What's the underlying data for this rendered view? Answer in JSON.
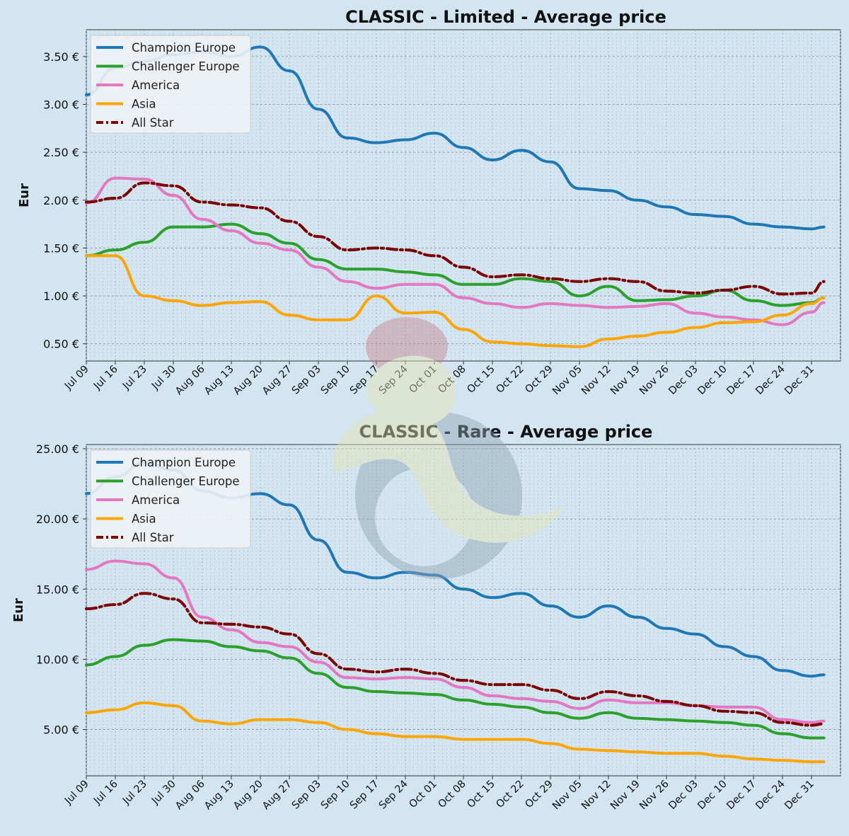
{
  "colors": {
    "background": "#d3e5f0",
    "champion_europe": "#1f77b4",
    "challenger_europe": "#2ca02c",
    "america": "#e377c2",
    "asia": "#ffa500",
    "all_star": "#7b0000"
  },
  "x_ticks": [
    "Jul 09",
    "Jul 16",
    "Jul 23",
    "Jul 30",
    "Aug 06",
    "Aug 13",
    "Aug 20",
    "Aug 27",
    "Sep 03",
    "Sep 10",
    "Sep 17",
    "Sep 24",
    "Oct 01",
    "Oct 08",
    "Oct 15",
    "Oct 22",
    "Oct 29",
    "Nov 05",
    "Nov 12",
    "Nov 19",
    "Nov 26",
    "Dec 03",
    "Dec 10",
    "Dec 17",
    "Dec 24",
    "Dec 31"
  ],
  "chart_data": [
    {
      "type": "line",
      "title": "CLASSIC   -   Limited   -   Average price",
      "xlabel": "",
      "ylabel": "Eur",
      "x_range": [
        "Jul 09",
        "Jan 07"
      ],
      "ylim": [
        0.32,
        3.78
      ],
      "y_ticks": [
        "0.50 €",
        "1.00 €",
        "1.50 €",
        "2.00 €",
        "2.50 €",
        "3.00 €",
        "3.50 €"
      ],
      "y_tick_values": [
        0.5,
        1.0,
        1.5,
        2.0,
        2.5,
        3.0,
        3.5
      ],
      "grid": true,
      "legend": "top-left",
      "x": [
        "Jul 09",
        "Jul 16",
        "Jul 23",
        "Jul 30",
        "Aug 06",
        "Aug 13",
        "Aug 20",
        "Aug 27",
        "Sep 03",
        "Sep 10",
        "Sep 17",
        "Sep 24",
        "Oct 01",
        "Oct 08",
        "Oct 15",
        "Oct 22",
        "Oct 29",
        "Nov 05",
        "Nov 12",
        "Nov 19",
        "Nov 26",
        "Dec 03",
        "Dec 10",
        "Dec 17",
        "Dec 24",
        "Dec 31",
        "Jan 06"
      ],
      "series": [
        {
          "name": "Champion Europe",
          "style": "solid",
          "values": [
            3.1,
            3.38,
            3.45,
            3.52,
            3.55,
            3.5,
            3.6,
            3.35,
            2.95,
            2.65,
            2.6,
            2.63,
            2.7,
            2.55,
            2.42,
            2.52,
            2.4,
            2.12,
            2.1,
            2.0,
            1.93,
            1.85,
            1.83,
            1.75,
            1.72,
            1.7,
            1.72
          ]
        },
        {
          "name": "Challenger Europe",
          "style": "solid",
          "values": [
            1.42,
            1.48,
            1.56,
            1.72,
            1.72,
            1.75,
            1.65,
            1.55,
            1.38,
            1.28,
            1.28,
            1.25,
            1.22,
            1.12,
            1.12,
            1.18,
            1.15,
            1.0,
            1.1,
            0.95,
            0.96,
            1.0,
            1.06,
            0.95,
            0.9,
            0.93,
            0.98
          ]
        },
        {
          "name": "America",
          "style": "solid",
          "values": [
            1.97,
            2.23,
            2.22,
            2.05,
            1.8,
            1.68,
            1.55,
            1.48,
            1.3,
            1.15,
            1.08,
            1.12,
            1.12,
            0.98,
            0.92,
            0.88,
            0.92,
            0.9,
            0.88,
            0.89,
            0.92,
            0.82,
            0.78,
            0.75,
            0.7,
            0.83,
            0.93
          ]
        },
        {
          "name": "Asia",
          "style": "solid",
          "values": [
            1.42,
            1.42,
            1.0,
            0.95,
            0.9,
            0.93,
            0.94,
            0.8,
            0.75,
            0.75,
            1.0,
            0.82,
            0.83,
            0.65,
            0.52,
            0.5,
            0.48,
            0.47,
            0.55,
            0.58,
            0.62,
            0.67,
            0.72,
            0.73,
            0.8,
            0.92,
            0.98
          ]
        },
        {
          "name": "All Star",
          "style": "dashdot",
          "values": [
            1.98,
            2.02,
            2.18,
            2.15,
            1.98,
            1.95,
            1.92,
            1.78,
            1.62,
            1.48,
            1.5,
            1.48,
            1.42,
            1.3,
            1.2,
            1.22,
            1.18,
            1.15,
            1.18,
            1.15,
            1.05,
            1.03,
            1.06,
            1.1,
            1.02,
            1.03,
            1.15
          ]
        }
      ]
    },
    {
      "type": "line",
      "title": "CLASSIC   -   Rare   -   Average price",
      "xlabel": "",
      "ylabel": "Eur",
      "x_range": [
        "Jul 09",
        "Jan 07"
      ],
      "ylim": [
        1.7,
        25.3
      ],
      "y_ticks": [
        "5.00 €",
        "10.00 €",
        "15.00 €",
        "20.00 €",
        "25.00 €"
      ],
      "y_tick_values": [
        5,
        10,
        15,
        20,
        25
      ],
      "grid": true,
      "legend": "top-left",
      "x": [
        "Jul 09",
        "Jul 16",
        "Jul 23",
        "Jul 30",
        "Aug 06",
        "Aug 13",
        "Aug 20",
        "Aug 27",
        "Sep 03",
        "Sep 10",
        "Sep 17",
        "Sep 24",
        "Oct 01",
        "Oct 08",
        "Oct 15",
        "Oct 22",
        "Oct 29",
        "Nov 05",
        "Nov 12",
        "Nov 19",
        "Nov 26",
        "Dec 03",
        "Dec 10",
        "Dec 17",
        "Dec 24",
        "Dec 31",
        "Jan 06"
      ],
      "series": [
        {
          "name": "Champion Europe",
          "style": "solid",
          "values": [
            21.8,
            23.0,
            24.0,
            23.5,
            22.0,
            21.5,
            21.8,
            21.0,
            18.5,
            16.2,
            15.8,
            16.2,
            16.0,
            15.0,
            14.4,
            14.7,
            13.8,
            13.0,
            13.8,
            13.0,
            12.2,
            11.8,
            10.9,
            10.2,
            9.2,
            8.8,
            8.9
          ]
        },
        {
          "name": "Challenger Europe",
          "style": "solid",
          "values": [
            9.6,
            10.2,
            11.0,
            11.4,
            11.3,
            10.9,
            10.6,
            10.1,
            9.0,
            8.0,
            7.7,
            7.6,
            7.5,
            7.1,
            6.8,
            6.6,
            6.2,
            5.8,
            6.2,
            5.8,
            5.7,
            5.6,
            5.5,
            5.3,
            4.7,
            4.4,
            4.4
          ]
        },
        {
          "name": "America",
          "style": "solid",
          "values": [
            16.4,
            17.0,
            16.8,
            15.8,
            13.0,
            12.1,
            11.2,
            10.9,
            9.8,
            8.7,
            8.6,
            8.7,
            8.6,
            8.0,
            7.4,
            7.2,
            7.0,
            6.5,
            7.1,
            6.9,
            6.9,
            6.7,
            6.6,
            6.6,
            5.7,
            5.5,
            5.6
          ]
        },
        {
          "name": "Asia",
          "style": "solid",
          "values": [
            6.2,
            6.4,
            6.9,
            6.7,
            5.6,
            5.4,
            5.7,
            5.7,
            5.5,
            5.0,
            4.7,
            4.5,
            4.5,
            4.3,
            4.3,
            4.3,
            4.0,
            3.6,
            3.5,
            3.4,
            3.3,
            3.3,
            3.1,
            2.9,
            2.8,
            2.7,
            2.7
          ]
        },
        {
          "name": "All Star",
          "style": "dashdot",
          "values": [
            13.6,
            13.9,
            14.7,
            14.3,
            12.6,
            12.5,
            12.3,
            11.8,
            10.4,
            9.3,
            9.1,
            9.3,
            9.0,
            8.5,
            8.2,
            8.2,
            7.8,
            7.2,
            7.7,
            7.4,
            7.0,
            6.7,
            6.3,
            6.2,
            5.5,
            5.3,
            5.4
          ]
        }
      ]
    }
  ]
}
